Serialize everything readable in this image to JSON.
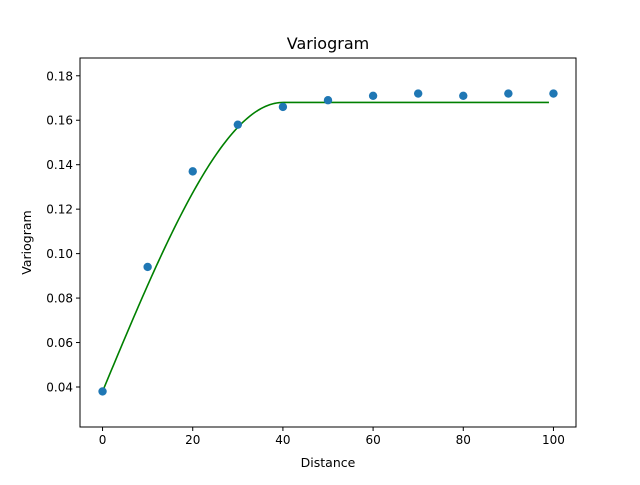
{
  "chart_data": {
    "type": "scatter",
    "title": "Variogram",
    "xlabel": "Distance",
    "ylabel": "Variogram",
    "xlim": [
      -5,
      105
    ],
    "ylim": [
      0.022,
      0.188
    ],
    "x_ticks": [
      0,
      20,
      40,
      60,
      80,
      100
    ],
    "x_tick_labels": [
      "0",
      "20",
      "40",
      "60",
      "80",
      "100"
    ],
    "y_ticks": [
      0.04,
      0.06,
      0.08,
      0.1,
      0.12,
      0.14,
      0.16,
      0.18
    ],
    "y_tick_labels": [
      "0.04",
      "0.06",
      "0.08",
      "0.10",
      "0.12",
      "0.14",
      "0.16",
      "0.18"
    ],
    "grid": false,
    "series": [
      {
        "kind": "scatter",
        "color": "#1f77b4",
        "x": [
          0,
          10,
          20,
          30,
          40,
          50,
          60,
          70,
          80,
          90,
          100
        ],
        "y": [
          0.038,
          0.094,
          0.137,
          0.158,
          0.166,
          0.169,
          0.171,
          0.172,
          0.171,
          0.172,
          0.172
        ]
      },
      {
        "kind": "line",
        "model": "spherical",
        "color": "#008000",
        "nugget": 0.038,
        "sill": 0.168,
        "range": 40,
        "x_start": 0,
        "x_end": 99
      }
    ]
  }
}
